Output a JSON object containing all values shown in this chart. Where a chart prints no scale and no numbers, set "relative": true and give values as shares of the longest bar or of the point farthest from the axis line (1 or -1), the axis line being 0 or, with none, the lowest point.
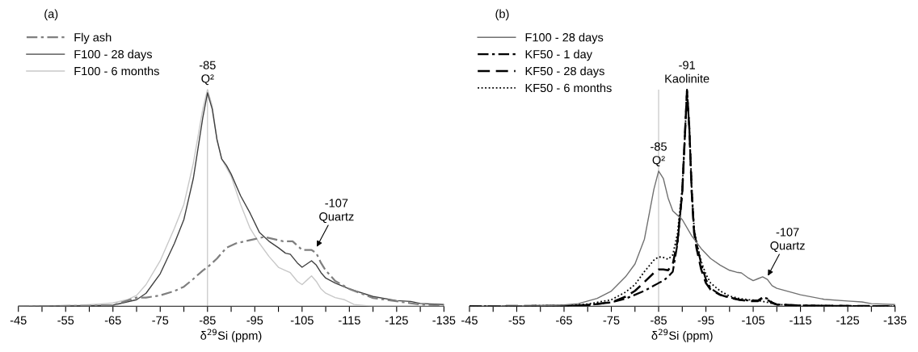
{
  "chart_data": [
    {
      "type": "line",
      "title": "(a)",
      "xlabel": "δ$^{29}$Si (ppm)",
      "relative": true,
      "xlim": [
        -45,
        -135
      ],
      "xticks": [
        -45,
        {
          "value": -50,
          "label": null
        },
        -55,
        {
          "value": -60,
          "label": null
        },
        -65,
        {
          "value": -70,
          "label": null
        },
        -75,
        {
          "value": -80,
          "label": null
        },
        -85,
        {
          "value": -90,
          "label": null
        },
        -95,
        {
          "value": -100,
          "label": null
        },
        -105,
        {
          "value": -110,
          "label": null
        },
        -115,
        {
          "value": -120,
          "label": null
        },
        -125,
        {
          "value": -130,
          "label": null
        },
        -135
      ],
      "tick_labels": "x",
      "grid": false,
      "legend": "top left",
      "ref_lines": [
        {
          "axis": "x",
          "value": -85,
          "color": "#c8c8c8"
        }
      ],
      "annotations": [
        {
          "text": "-85\nQ²",
          "x": -85,
          "y": 1.0
        },
        {
          "text": "-107\nQuartz",
          "x": -108,
          "y": 0.27
        }
      ],
      "series": [
        {
          "name": "Fly ash",
          "color": "#7f7f7f",
          "line_style": "dashdot",
          "x": [
            -45,
            -60,
            -65,
            -70,
            -72,
            -75,
            -78,
            -80,
            -82,
            -84,
            -85,
            -87,
            -89,
            -91,
            -93,
            -95,
            -97,
            -99,
            -101,
            -103,
            -104,
            -105,
            -106,
            -107,
            -108,
            -109,
            -110,
            -112,
            -115,
            -120,
            -125,
            -130,
            -135
          ],
          "values": [
            0,
            0.002,
            0.005,
            0.04,
            0.04,
            0.05,
            0.07,
            0.09,
            0.126,
            0.165,
            0.18,
            0.22,
            0.27,
            0.29,
            0.3,
            0.31,
            0.32,
            0.31,
            0.3,
            0.3,
            0.28,
            0.26,
            0.26,
            0.26,
            0.245,
            0.2,
            0.165,
            0.117,
            0.08,
            0.038,
            0.023,
            0.008,
            0.004
          ]
        },
        {
          "name": "F100 - 28 days",
          "color": "#404040",
          "line_style": "solid",
          "x": [
            -45,
            -60,
            -65,
            -70,
            -72,
            -75,
            -78,
            -80,
            -82,
            -84,
            -85,
            -86,
            -87,
            -88,
            -89,
            -90,
            -92,
            -94,
            -96,
            -98,
            -100,
            -101.5,
            -102.5,
            -104,
            -105,
            -106,
            -107,
            -108,
            -109,
            -110,
            -112,
            -115,
            -120,
            -125,
            -128,
            -130,
            -135
          ],
          "values": [
            0,
            0.002,
            0.005,
            0.03,
            0.06,
            0.15,
            0.29,
            0.4,
            0.59,
            0.87,
            0.985,
            0.91,
            0.77,
            0.68,
            0.65,
            0.61,
            0.51,
            0.43,
            0.34,
            0.3,
            0.27,
            0.245,
            0.24,
            0.2,
            0.18,
            0.195,
            0.21,
            0.19,
            0.155,
            0.13,
            0.107,
            0.08,
            0.045,
            0.026,
            0.022,
            0.013,
            0.008
          ]
        },
        {
          "name": "F100 - 6 months",
          "color": "#c8c8c8",
          "line_style": "solid",
          "x": [
            -45,
            -58,
            -62,
            -65,
            -68,
            -70,
            -72,
            -75,
            -78,
            -80,
            -82,
            -84,
            -85,
            -86,
            -87,
            -88,
            -89,
            -90,
            -92,
            -94,
            -96,
            -98,
            -100,
            -101.5,
            -102.5,
            -104,
            -105,
            -106,
            -107,
            -108,
            -109,
            -110,
            -112,
            -114,
            -116,
            -120,
            -135
          ],
          "values": [
            0,
            0.005,
            0.01,
            0.015,
            0.03,
            0.05,
            0.1,
            0.21,
            0.36,
            0.47,
            0.66,
            0.91,
            1.0,
            0.925,
            0.77,
            0.68,
            0.64,
            0.6,
            0.47,
            0.36,
            0.29,
            0.23,
            0.18,
            0.165,
            0.155,
            0.115,
            0.1,
            0.12,
            0.14,
            0.115,
            0.08,
            0.06,
            0.04,
            0.03,
            0.008,
            0,
            0
          ]
        }
      ]
    },
    {
      "type": "line",
      "title": "(b)",
      "xlabel": "δ$^{29}$Si (ppm)",
      "relative": true,
      "xlim": [
        -45,
        -135
      ],
      "xticks": [
        -45,
        {
          "value": -50,
          "label": null
        },
        -55,
        {
          "value": -60,
          "label": null
        },
        -65,
        {
          "value": -70,
          "label": null
        },
        -75,
        {
          "value": -80,
          "label": null
        },
        -85,
        {
          "value": -90,
          "label": null
        },
        -95,
        {
          "value": -100,
          "label": null
        },
        -105,
        {
          "value": -110,
          "label": null
        },
        -115,
        {
          "value": -120,
          "label": null
        },
        -125,
        {
          "value": -130,
          "label": null
        },
        -135
      ],
      "tick_labels": "x",
      "grid": false,
      "legend": "top left",
      "ref_lines": [
        {
          "axis": "x",
          "value": -85,
          "color": "#c8c8c8"
        }
      ],
      "annotations": [
        {
          "text": "-91\nKaolinite",
          "x": -91,
          "y": 1.0
        },
        {
          "text": "-85\nQ²",
          "x": -85,
          "y": 0.624
        },
        {
          "text": "-107\nQuartz",
          "x": -108,
          "y": 0.136
        }
      ],
      "series": [
        {
          "name": "F100 - 28 days",
          "color": "#707070",
          "line_style": "solid",
          "x": [
            -45,
            -60,
            -65,
            -68,
            -70,
            -72,
            -75,
            -78,
            -80,
            -82,
            -84,
            -85,
            -86,
            -87,
            -88,
            -89,
            -90,
            -92,
            -94,
            -96,
            -98,
            -100,
            -101.5,
            -102.5,
            -104,
            -105,
            -106,
            -107,
            -108,
            -109,
            -110,
            -115,
            -120,
            -125,
            -128,
            -130,
            -135
          ],
          "values": [
            0,
            0.002,
            0.006,
            0.012,
            0.024,
            0.036,
            0.07,
            0.136,
            0.195,
            0.31,
            0.54,
            0.624,
            0.59,
            0.5,
            0.44,
            0.42,
            0.4,
            0.325,
            0.266,
            0.22,
            0.19,
            0.166,
            0.157,
            0.154,
            0.13,
            0.118,
            0.127,
            0.136,
            0.124,
            0.095,
            0.083,
            0.053,
            0.032,
            0.024,
            0.02,
            0.012,
            0.008
          ]
        },
        {
          "name": "KF50 - 1 day",
          "color": "#000000",
          "line_style": "dashdot",
          "x": [
            -45,
            -65,
            -70,
            -75,
            -78,
            -80,
            -82,
            -84,
            -85,
            -86,
            -87,
            -88,
            -89,
            -90,
            -90.5,
            -91,
            -91.5,
            -92,
            -92.5,
            -93,
            -94,
            -95,
            -96,
            -98,
            -100,
            -102,
            -104,
            -106,
            -107,
            -108,
            -109,
            -110,
            -115,
            -120,
            -135
          ],
          "values": [
            0,
            0.002,
            0.005,
            0.018,
            0.035,
            0.053,
            0.071,
            0.095,
            0.107,
            0.118,
            0.136,
            0.16,
            0.29,
            0.527,
            0.76,
            1.0,
            0.82,
            0.527,
            0.35,
            0.29,
            0.195,
            0.124,
            0.083,
            0.053,
            0.041,
            0.03,
            0.027,
            0.027,
            0.041,
            0.035,
            0.018,
            0.008,
            0.004,
            0.002,
            0
          ]
        },
        {
          "name": "KF50 - 28 days",
          "color": "#000000",
          "line_style": "dashed",
          "x": [
            -45,
            -65,
            -70,
            -75,
            -78,
            -80,
            -82,
            -84,
            -85,
            -86,
            -87,
            -88,
            -89,
            -90,
            -90.5,
            -91,
            -91.5,
            -92,
            -92.5,
            -93,
            -94,
            -95,
            -96,
            -98,
            -100,
            -102,
            -104,
            -106,
            -107,
            -108,
            -109,
            -110,
            -115,
            -135
          ],
          "values": [
            0,
            0.002,
            0.006,
            0.018,
            0.044,
            0.071,
            0.112,
            0.154,
            0.17,
            0.17,
            0.166,
            0.195,
            0.3,
            0.527,
            0.76,
            0.994,
            0.82,
            0.527,
            0.34,
            0.27,
            0.17,
            0.107,
            0.077,
            0.053,
            0.039,
            0.03,
            0.024,
            0.024,
            0.039,
            0.03,
            0.015,
            0.008,
            0.003,
            0
          ]
        },
        {
          "name": "KF50 - 6 months",
          "color": "#000000",
          "line_style": "dotted",
          "x": [
            -45,
            -65,
            -70,
            -75,
            -78,
            -80,
            -82,
            -84,
            -85,
            -86,
            -87,
            -88,
            -89,
            -90,
            -90.5,
            -91,
            -91.5,
            -92,
            -92.5,
            -93,
            -94,
            -95,
            -96,
            -98,
            -100,
            -102,
            -104,
            -106,
            -108,
            -110,
            -115,
            -135
          ],
          "values": [
            0,
            0.003,
            0.01,
            0.03,
            0.065,
            0.1,
            0.16,
            0.213,
            0.228,
            0.225,
            0.217,
            0.237,
            0.337,
            0.55,
            0.76,
            0.988,
            0.82,
            0.55,
            0.36,
            0.3,
            0.207,
            0.148,
            0.107,
            0.071,
            0.047,
            0.036,
            0.03,
            0.027,
            0.018,
            0.008,
            0.003,
            0
          ]
        }
      ]
    }
  ]
}
